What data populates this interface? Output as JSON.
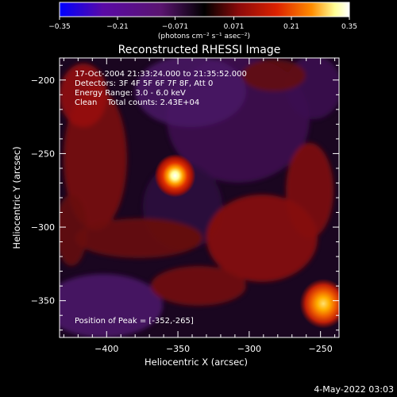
{
  "chart_data": {
    "type": "heatmap",
    "title": "Reconstructed RHESSI Image",
    "xlabel": "Heliocentric X (arcsec)",
    "ylabel": "Heliocentric Y (arcsec)",
    "xlim": [
      -433,
      -237
    ],
    "ylim": [
      -375,
      -185
    ],
    "x_ticks": [
      -400,
      -350,
      -300,
      -250
    ],
    "y_ticks": [
      -200,
      -250,
      -300,
      -350
    ],
    "x_tick_labels": [
      "−400",
      "−350",
      "−300",
      "−250"
    ],
    "y_tick_labels": [
      "−200",
      "−250",
      "−300",
      "−350"
    ],
    "colorbar": {
      "range": [
        -0.35,
        0.35
      ],
      "ticks": [
        -0.35,
        -0.21,
        -0.071,
        0.071,
        0.21,
        0.35
      ],
      "tick_labels": [
        "−0.35",
        "−0.21",
        "−0.071",
        "0.071",
        "0.21",
        "0.35"
      ],
      "unit_label": "(photons cm⁻² s⁻¹ asec⁻²)",
      "colors": [
        "#0000ff",
        "#5a0aa6",
        "#5a1570",
        "#000000",
        "#8c0a0a",
        "#dc2200",
        "#ff8c00",
        "#ffff96",
        "#ffffff"
      ]
    },
    "annotations": {
      "time_range": "17-Oct-2004 21:33:24.000 to 21:35:52.000",
      "detectors": "Detectors: 3F 4F 5F 6F 7F 8F, Att 0",
      "energy_range": "Energy Range: 3.0 - 6.0 keV",
      "method_counts": "Clean    Total counts: 2.43E+04",
      "peak_position": "Position of Peak = [-352,-265]"
    },
    "sources": [
      {
        "x": -352,
        "y": -265,
        "peak": 0.35
      },
      {
        "x": -248,
        "y": -352,
        "peak": 0.3
      }
    ]
  },
  "footer": {
    "timestamp": "4-May-2022 03:03"
  }
}
